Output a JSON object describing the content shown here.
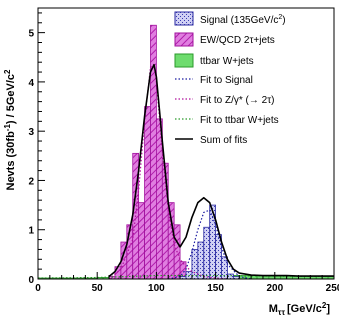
{
  "chart_data": {
    "type": "histogram",
    "xlabel": {
      "main": "M",
      "sub": "ττ",
      "unit": "[GeV/c",
      "sup": "2",
      "end": "]"
    },
    "ylabel": {
      "main": "Nevts (30fb",
      "sup1": "-1",
      "mid": ") / 5GeV/c",
      "sup2": "2"
    },
    "xlim": [
      0,
      250
    ],
    "ylim": [
      0,
      5.5
    ],
    "xticks": [
      "0",
      "50",
      "100",
      "150",
      "200",
      "250"
    ],
    "yticks": [
      "0",
      "1",
      "2",
      "3",
      "4",
      "5"
    ],
    "bin_edges": [
      0,
      5,
      10,
      15,
      20,
      25,
      30,
      35,
      40,
      45,
      50,
      55,
      60,
      65,
      70,
      75,
      80,
      85,
      90,
      95,
      100,
      105,
      110,
      115,
      120,
      125,
      130,
      135,
      140,
      145,
      150,
      155,
      160,
      165,
      170,
      175,
      180,
      185,
      190,
      195,
      200,
      205,
      210,
      215,
      220,
      225,
      230,
      235,
      240,
      245,
      250
    ],
    "series": [
      {
        "name": "Signal (135GeV/c²)",
        "name_parts": {
          "text": "Signal (135GeV/c",
          "sup": "2",
          "end": ")"
        },
        "fill": "#b4b4e6",
        "stroke": "#2a2aa0",
        "values": [
          0,
          0,
          0,
          0,
          0,
          0,
          0,
          0,
          0,
          0,
          0,
          0,
          0,
          0,
          0,
          0,
          0,
          0,
          0,
          0,
          0,
          0,
          0,
          0,
          0.05,
          0.15,
          0.6,
          0.75,
          1.05,
          1.5,
          0.9,
          0.45,
          0.1,
          0.05,
          0,
          0,
          0,
          0,
          0,
          0,
          0,
          0,
          0,
          0,
          0,
          0,
          0,
          0,
          0,
          0
        ]
      },
      {
        "name": "EW/QCD 2τ+jets",
        "name_parts": {
          "text": "EW/QCD 2τ+jets"
        },
        "fill": "#d23ccd",
        "stroke": "#a0109c",
        "values": [
          0,
          0,
          0,
          0,
          0,
          0,
          0,
          0,
          0,
          0,
          0,
          0,
          0.05,
          0.25,
          0.75,
          1.1,
          2.55,
          1.55,
          3.5,
          5.15,
          3.25,
          2.35,
          1.55,
          1.1,
          0.35,
          0.1,
          0.05,
          0.05,
          0.1,
          0.25,
          0.05,
          0,
          0,
          0,
          0,
          0,
          0,
          0,
          0,
          0,
          0,
          0,
          0,
          0,
          0,
          0,
          0,
          0,
          0,
          0
        ]
      },
      {
        "name": "ttbar W+jets",
        "name_parts": {
          "text": "ttbar W+jets"
        },
        "fill": "#6edc6e",
        "stroke": "#2a9a2a",
        "values": [
          0.02,
          0.02,
          0.02,
          0.02,
          0.02,
          0.02,
          0.02,
          0.02,
          0.02,
          0.02,
          0.03,
          0.03,
          0.03,
          0.04,
          0.04,
          0.05,
          0.05,
          0.05,
          0.06,
          0.06,
          0.07,
          0.07,
          0.07,
          0.07,
          0.07,
          0.07,
          0.07,
          0.07,
          0.07,
          0.07,
          0.07,
          0.07,
          0.07,
          0.07,
          0.07,
          0.07,
          0.07,
          0.07,
          0.06,
          0.06,
          0.06,
          0.06,
          0.06,
          0.06,
          0.06,
          0.06,
          0.06,
          0.06,
          0.05,
          0.05
        ]
      }
    ],
    "fits": [
      {
        "name": "Fit to Signal",
        "label_parts": {
          "text": "Fit to Signal"
        },
        "color": "#1a1aa0",
        "dash": "dotted",
        "x": [
          110,
          120,
          125,
          130,
          135,
          140,
          145,
          150,
          155,
          160,
          170,
          180
        ],
        "y": [
          0.0,
          0.05,
          0.2,
          0.55,
          1.0,
          1.35,
          1.4,
          1.1,
          0.65,
          0.3,
          0.05,
          0.0
        ]
      },
      {
        "name": "Fit to Z/γ* (→ 2τ)",
        "label_parts": {
          "text": "Fit to Z/γ* (→ 2τ)"
        },
        "color": "#b0109c",
        "dash": "dotted",
        "x": [
          60,
          70,
          80,
          85,
          90,
          95,
          98,
          100,
          105,
          110,
          115,
          120,
          125,
          130,
          140,
          150,
          160
        ],
        "y": [
          0.0,
          0.2,
          0.8,
          1.8,
          3.2,
          4.3,
          4.35,
          4.0,
          2.6,
          1.4,
          0.7,
          0.4,
          0.25,
          0.15,
          0.05,
          0.02,
          0.0
        ]
      },
      {
        "name": "Fit to ttbar W+jets",
        "label_parts": {
          "text": "Fit to ttbar W+jets"
        },
        "color": "#2a9a2a",
        "dash": "dotted",
        "x": [
          0,
          50,
          100,
          150,
          200,
          250
        ],
        "y": [
          0.02,
          0.03,
          0.07,
          0.07,
          0.06,
          0.05
        ]
      },
      {
        "name": "Sum of fits",
        "label_parts": {
          "text": "Sum of fits"
        },
        "color": "#000000",
        "dash": "solid",
        "x": [
          60,
          65,
          70,
          75,
          80,
          85,
          90,
          95,
          98,
          100,
          105,
          110,
          115,
          120,
          125,
          130,
          135,
          140,
          145,
          150,
          155,
          160,
          165,
          170,
          180,
          190,
          200,
          210,
          220,
          230,
          240,
          250
        ],
        "y": [
          0.05,
          0.15,
          0.35,
          0.7,
          1.3,
          2.2,
          3.3,
          4.2,
          4.35,
          4.1,
          2.8,
          1.55,
          0.85,
          0.65,
          0.85,
          1.25,
          1.55,
          1.65,
          1.55,
          1.2,
          0.75,
          0.4,
          0.2,
          0.12,
          0.08,
          0.07,
          0.07,
          0.07,
          0.06,
          0.06,
          0.06,
          0.06
        ]
      }
    ]
  }
}
